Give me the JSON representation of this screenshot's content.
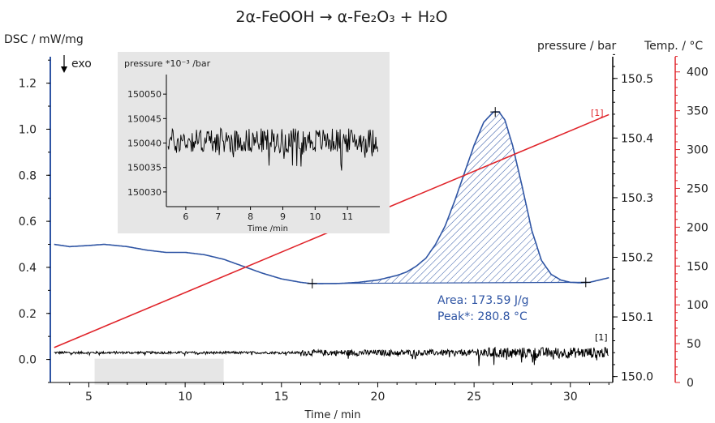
{
  "chart_data": {
    "type": "line",
    "title": "2α-FeOOH → α-Fe₂O₃ + H₂O",
    "xlabel": "Time / min",
    "xlim": [
      3,
      32.2
    ],
    "xticks": [
      5,
      10,
      15,
      20,
      25,
      30
    ],
    "exo_label": "exo",
    "axes": {
      "dsc": {
        "label": "DSC / mW/mg",
        "color": "#2f55a4",
        "ylim": [
          -0.1,
          1.35
        ],
        "ticks": [
          0.0,
          0.2,
          0.4,
          0.6,
          0.8,
          1.0,
          1.2
        ],
        "tick_labels": [
          "0.0",
          "0.2",
          "0.4",
          "0.6",
          "0.8",
          "1.0",
          "1.2"
        ]
      },
      "pressure": {
        "label": "pressure / bar",
        "color": "#000000",
        "ylim": [
          149.99,
          150.55
        ],
        "ticks": [
          150.0,
          150.1,
          150.2,
          150.3,
          150.4,
          150.5
        ],
        "tick_labels": [
          "150.0",
          "150.1",
          "150.2",
          "150.3",
          "150.4",
          "150.5"
        ]
      },
      "temperature": {
        "label": "Temp. / °C",
        "color": "#e0242a",
        "ylim": [
          0,
          430
        ],
        "ticks": [
          0,
          50,
          100,
          150,
          200,
          250,
          300,
          350,
          400
        ],
        "tick_labels": [
          "0",
          "50",
          "100",
          "150",
          "200",
          "250",
          "300",
          "350",
          "400"
        ]
      }
    },
    "series": [
      {
        "axis": "dsc",
        "color": "#2f55a4",
        "x": [
          3.2,
          4,
          5,
          5.8,
          7,
          8,
          9,
          10,
          11,
          12,
          13,
          14,
          15,
          16,
          16.5,
          17,
          18,
          19,
          20,
          21,
          21.5,
          22,
          22.5,
          23,
          23.5,
          24,
          24.5,
          25,
          25.5,
          26,
          26.3,
          26.6,
          27,
          27.5,
          28,
          28.5,
          29,
          29.5,
          30,
          30.5,
          31,
          31.5,
          32
        ],
        "y": [
          0.5,
          0.49,
          0.495,
          0.5,
          0.49,
          0.475,
          0.465,
          0.465,
          0.455,
          0.435,
          0.405,
          0.375,
          0.35,
          0.335,
          0.33,
          0.329,
          0.33,
          0.335,
          0.345,
          0.365,
          0.38,
          0.405,
          0.44,
          0.5,
          0.58,
          0.69,
          0.81,
          0.93,
          1.03,
          1.075,
          1.075,
          1.04,
          0.93,
          0.75,
          0.56,
          0.43,
          0.37,
          0.345,
          0.335,
          0.333,
          0.335,
          0.345,
          0.355
        ]
      },
      {
        "axis": "temperature",
        "color": "#e0242a",
        "x": [
          3.2,
          32
        ],
        "y": [
          45,
          345
        ]
      },
      {
        "axis": "pressure",
        "color": "#000000",
        "baseline": 150.04,
        "noise": [
          {
            "x_range": [
              3.2,
              16
            ],
            "amplitude": 0.002
          },
          {
            "x_range": [
              16,
              25
            ],
            "amplitude": 0.005
          },
          {
            "x_range": [
              25,
              32
            ],
            "amplitude": 0.009
          }
        ]
      }
    ],
    "peak": {
      "area_label": "Area: 173.59 J/g",
      "peak_label": "Peak*: 280.8 °C",
      "x_start": 16.6,
      "x_end": 30.8,
      "baseline_y": [
        0.33,
        0.335
      ],
      "peak_x": 26.1,
      "peak_y": 1.075,
      "color": "#2f55a4"
    },
    "markers": [
      {
        "label": "[1]",
        "series": "temperature",
        "color": "#e0242a"
      },
      {
        "label": "[1]",
        "series": "pressure",
        "color": "#000000"
      }
    ],
    "highlight": {
      "x_range": [
        5.3,
        12
      ],
      "color": "#e6e6e6"
    },
    "inset": {
      "ylabel": "pressure *10⁻³ /bar",
      "xlabel": "Time /min",
      "xlim": [
        5.4,
        12
      ],
      "xticks": [
        6,
        7,
        8,
        9,
        10,
        11
      ],
      "ylim": [
        150027,
        150054
      ],
      "yticks": [
        150030,
        150035,
        150040,
        150045,
        150050
      ],
      "baseline": 150040.5,
      "amplitude": 2.5
    }
  }
}
